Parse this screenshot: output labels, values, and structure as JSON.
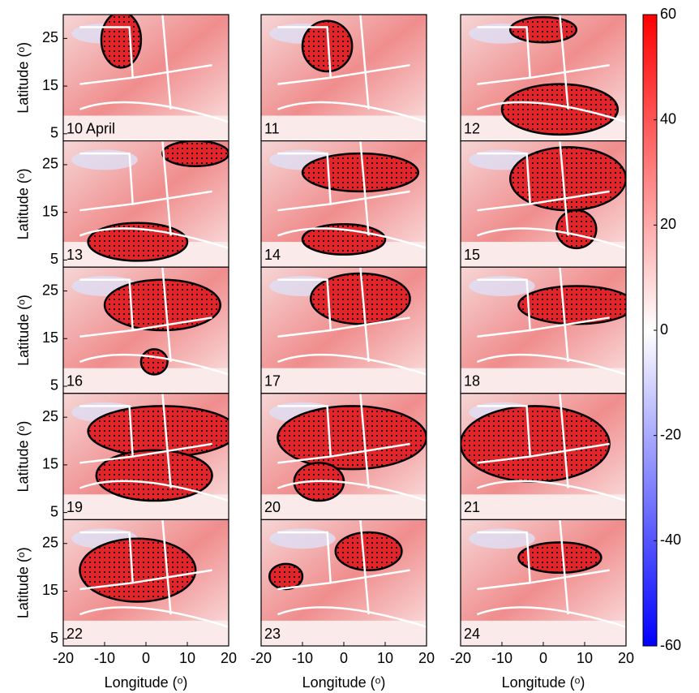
{
  "chart_data": {
    "type": "map",
    "panels": [
      {
        "label": "10 April"
      },
      {
        "label": "11"
      },
      {
        "label": "12"
      },
      {
        "label": "13"
      },
      {
        "label": "14"
      },
      {
        "label": "15"
      },
      {
        "label": "16"
      },
      {
        "label": "17"
      },
      {
        "label": "18"
      },
      {
        "label": "19"
      },
      {
        "label": "20"
      },
      {
        "label": "21"
      },
      {
        "label": "22"
      },
      {
        "label": "23"
      },
      {
        "label": "24"
      }
    ],
    "xlabel": "Longitude (ᵒ)",
    "ylabel": "Latitude (ᵒ)",
    "xlim": [
      -20,
      20
    ],
    "xticks": [
      -20,
      -10,
      0,
      10,
      20
    ],
    "ylim": [
      3.5,
      30
    ],
    "yticks": [
      5,
      15,
      25
    ],
    "colorbar": {
      "lim": [
        -60,
        60
      ],
      "ticks": [
        -60,
        -40,
        -20,
        0,
        20,
        40,
        60
      ],
      "colors": [
        "#0000ff",
        "#ffffff",
        "#ff0000"
      ]
    }
  }
}
